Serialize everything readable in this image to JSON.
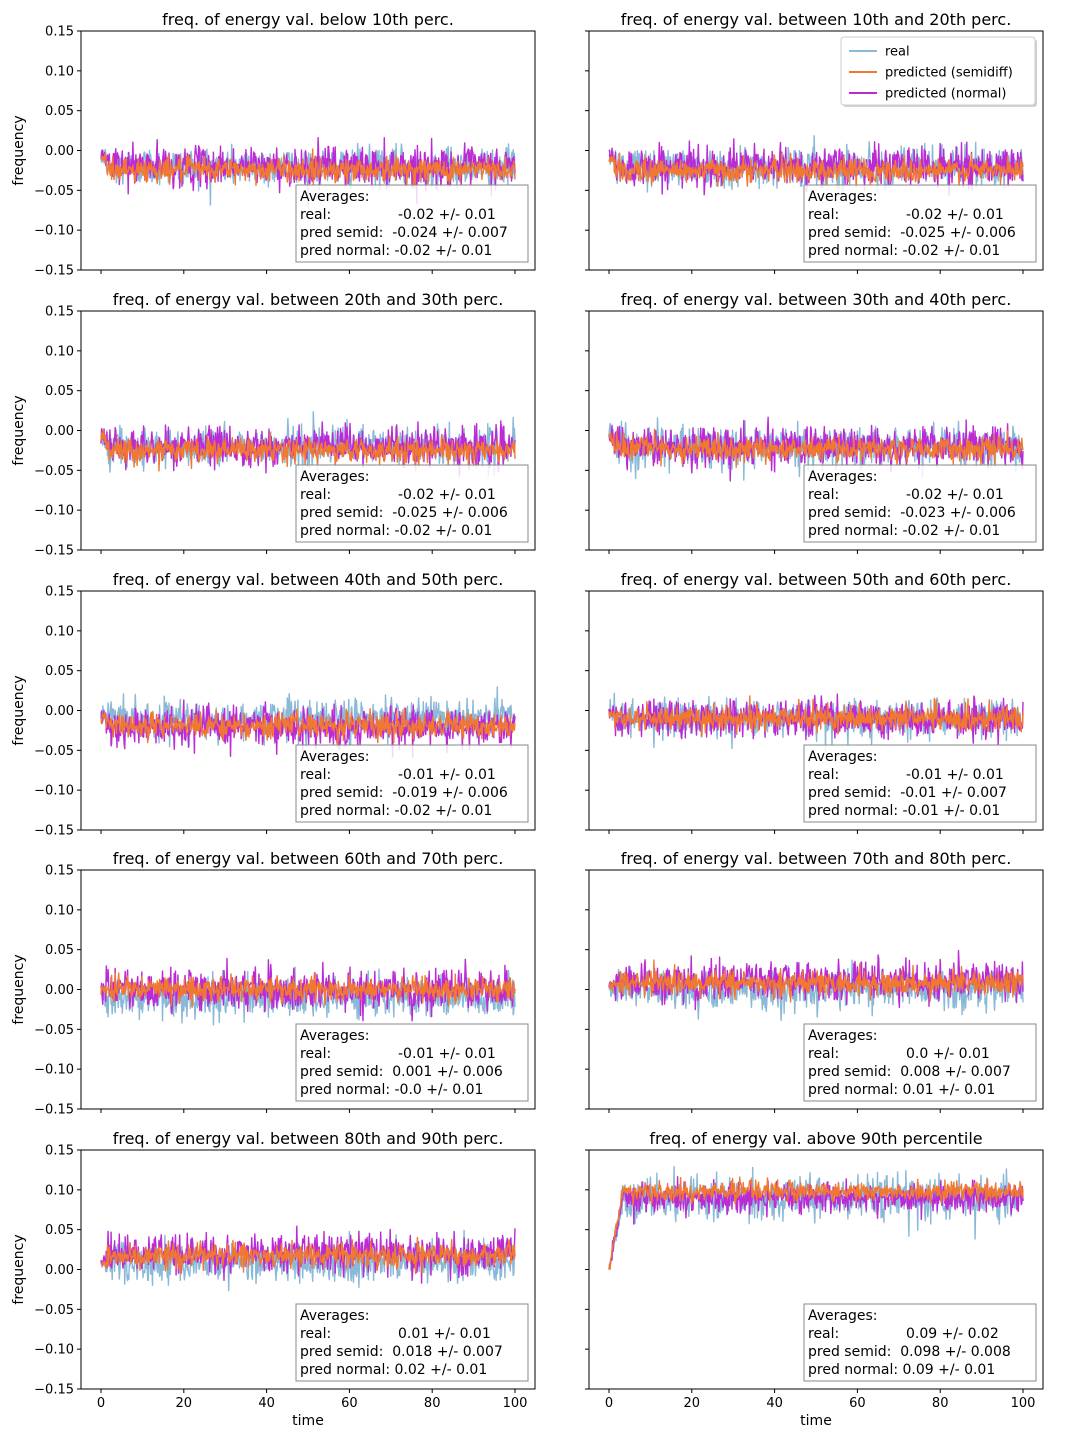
{
  "chart_data": {
    "type": "line",
    "layout": "5 rows x 2 columns, shared x and y axes",
    "xlabel": "time",
    "ylabel": "frequency",
    "xlim": [
      0,
      100
    ],
    "ylim": [
      -0.15,
      0.15
    ],
    "x_ticks": [
      "0",
      "20",
      "40",
      "60",
      "80",
      "100"
    ],
    "y_ticks": [
      "0.15",
      "0.10",
      "0.05",
      "0.00",
      "−0.05",
      "−0.10",
      "−0.15"
    ],
    "legend": {
      "placement": "upper-right of second panel",
      "entries": [
        {
          "name": "real",
          "color": "#8ab9d8"
        },
        {
          "name": "predicted (semidiff)",
          "color": "#f07830"
        },
        {
          "name": "predicted (normal)",
          "color": "#bb2ad4"
        }
      ]
    },
    "colors": {
      "real": "#8ab9d8",
      "semidiff": "#f07830",
      "normal": "#bb2ad4"
    },
    "panels": [
      {
        "title": "freq. of energy val. below 10th perc.",
        "series_mean": {
          "real": -0.02,
          "semidiff": -0.024,
          "normal": -0.02
        },
        "averages": [
          "Averages:",
          "real:               -0.02 +/- 0.01",
          "pred semid:  -0.024 +/- 0.007",
          "pred normal: -0.02 +/- 0.01"
        ]
      },
      {
        "title": "freq. of energy val. between 10th and 20th perc.",
        "series_mean": {
          "real": -0.02,
          "semidiff": -0.025,
          "normal": -0.02
        },
        "averages": [
          "Averages:",
          "real:               -0.02 +/- 0.01",
          "pred semid:  -0.025 +/- 0.006",
          "pred normal: -0.02 +/- 0.01"
        ]
      },
      {
        "title": "freq. of energy val. between 20th and 30th perc.",
        "series_mean": {
          "real": -0.02,
          "semidiff": -0.025,
          "normal": -0.02
        },
        "averages": [
          "Averages:",
          "real:               -0.02 +/- 0.01",
          "pred semid:  -0.025 +/- 0.006",
          "pred normal: -0.02 +/- 0.01"
        ]
      },
      {
        "title": "freq. of energy val. between 30th and 40th perc.",
        "series_mean": {
          "real": -0.02,
          "semidiff": -0.023,
          "normal": -0.02
        },
        "averages": [
          "Averages:",
          "real:               -0.02 +/- 0.01",
          "pred semid:  -0.023 +/- 0.006",
          "pred normal: -0.02 +/- 0.01"
        ]
      },
      {
        "title": "freq. of energy val. between 40th and 50th perc.",
        "series_mean": {
          "real": -0.01,
          "semidiff": -0.019,
          "normal": -0.02
        },
        "averages": [
          "Averages:",
          "real:               -0.01 +/- 0.01",
          "pred semid:  -0.019 +/- 0.006",
          "pred normal: -0.02 +/- 0.01"
        ]
      },
      {
        "title": "freq. of energy val. between 50th and 60th perc.",
        "series_mean": {
          "real": -0.01,
          "semidiff": -0.01,
          "normal": -0.01
        },
        "averages": [
          "Averages:",
          "real:               -0.01 +/- 0.01",
          "pred semid:  -0.01 +/- 0.007",
          "pred normal: -0.01 +/- 0.01"
        ]
      },
      {
        "title": "freq. of energy val. between 60th and 70th perc.",
        "series_mean": {
          "real": -0.01,
          "semidiff": 0.001,
          "normal": 0.0
        },
        "averages": [
          "Averages:",
          "real:               -0.01 +/- 0.01",
          "pred semid:  0.001 +/- 0.006",
          "pred normal: -0.0 +/- 0.01"
        ]
      },
      {
        "title": "freq. of energy val. between 70th and 80th perc.",
        "series_mean": {
          "real": 0.0,
          "semidiff": 0.008,
          "normal": 0.01
        },
        "averages": [
          "Averages:",
          "real:               0.0 +/- 0.01",
          "pred semid:  0.008 +/- 0.007",
          "pred normal: 0.01 +/- 0.01"
        ]
      },
      {
        "title": "freq. of energy val. between 80th and 90th perc.",
        "series_mean": {
          "real": 0.01,
          "semidiff": 0.018,
          "normal": 0.02
        },
        "averages": [
          "Averages:",
          "real:               0.01 +/- 0.01",
          "pred semid:  0.018 +/- 0.007",
          "pred normal: 0.02 +/- 0.01"
        ]
      },
      {
        "title": "freq. of energy val. above 90th percentile",
        "series_mean": {
          "real": 0.09,
          "semidiff": 0.098,
          "normal": 0.09
        },
        "averages": [
          "Averages:",
          "real:               0.09 +/- 0.02",
          "pred semid:  0.098 +/- 0.008",
          "pred normal: 0.09 +/- 0.01"
        ]
      }
    ]
  }
}
